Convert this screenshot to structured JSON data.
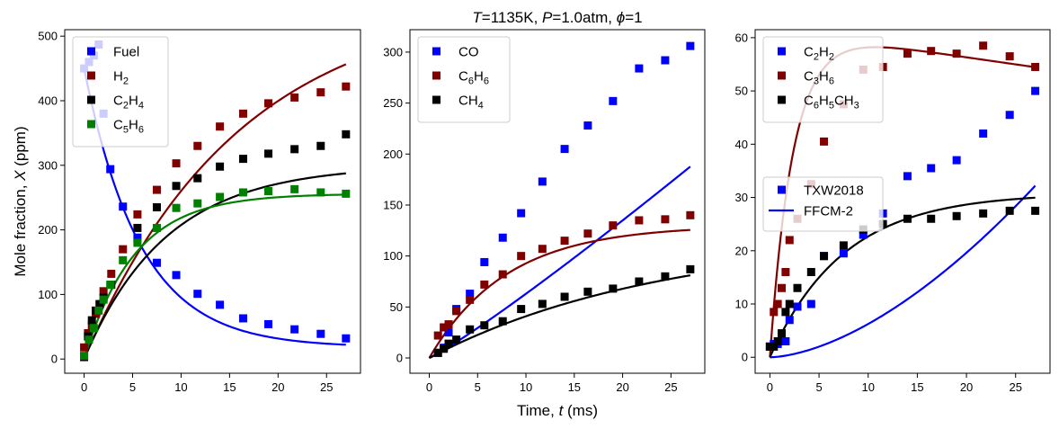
{
  "figure": {
    "title_parts": [
      {
        "text": "T",
        "italic": true
      },
      {
        "text": "=1135K, ",
        "italic": false
      },
      {
        "text": "P",
        "italic": true
      },
      {
        "text": "=1.0atm, ",
        "italic": false
      },
      {
        "text": "ϕ",
        "italic": true
      },
      {
        "text": "=1",
        "italic": false
      }
    ],
    "ylabel_parts": [
      {
        "text": "Mole fraction, ",
        "italic": false
      },
      {
        "text": "X",
        "italic": true
      },
      {
        "text": " (ppm)",
        "italic": false
      }
    ],
    "xlabel_parts": [
      {
        "text": "Time, ",
        "italic": false
      },
      {
        "text": "t",
        "italic": true
      },
      {
        "text": " (ms)",
        "italic": false
      }
    ],
    "style_legend": [
      {
        "label": "TXW2018",
        "kind": "marker",
        "color": "#0000ff"
      },
      {
        "label": "FFCM-2",
        "kind": "line",
        "color": "#0000ff"
      }
    ]
  },
  "chart_data": [
    {
      "type": "scatter+line",
      "xlim": [
        -2,
        28.5
      ],
      "ylim": [
        -22,
        510
      ],
      "xticks": [
        0,
        5,
        10,
        15,
        20,
        25
      ],
      "yticks": [
        0,
        100,
        200,
        300,
        400,
        500
      ],
      "legend": "top-left",
      "series": [
        {
          "name": "Fuel",
          "sub": "",
          "color": "#0000ff",
          "x": [
            0,
            0.5,
            1,
            1.5,
            2,
            2.7,
            4,
            5.5,
            7.5,
            9.5,
            11.7,
            14,
            16.4,
            19,
            21.7,
            24.4,
            27
          ],
          "y": [
            450,
            460,
            470,
            487,
            380,
            294,
            236,
            188,
            149,
            130,
            101,
            84,
            63,
            54,
            46,
            39,
            32
          ],
          "model": {
            "form": "decay",
            "x0": 0,
            "y0": 450,
            "yinf": 18,
            "tau": 5.8,
            "xmax": 27
          }
        },
        {
          "name": "H",
          "sub": "2",
          "color": "#800000",
          "x": [
            0,
            0.4,
            0.8,
            1.2,
            1.6,
            2.0,
            2.8,
            4.0,
            5.5,
            7.5,
            9.5,
            11.7,
            14,
            16.4,
            19,
            21.7,
            24.4,
            27
          ],
          "y": [
            18,
            40,
            52,
            70,
            85,
            105,
            132,
            170,
            224,
            262,
            303,
            330,
            360,
            380,
            396,
            405,
            413,
            422
          ],
          "model": {
            "form": "rise",
            "x0": 0,
            "y0": 0,
            "yinf": 560,
            "tau": 16,
            "xmax": 27
          }
        },
        {
          "name": "C",
          "sub": "2",
          "tail": "H",
          "sub2": "4",
          "color": "#000000",
          "x": [
            0,
            0.4,
            0.8,
            1.2,
            1.6,
            2.0,
            2.8,
            5.5,
            7.5,
            9.5,
            11.7,
            14,
            16.4,
            19,
            21.7,
            24.4,
            27
          ],
          "y": [
            3,
            35,
            60,
            75,
            85,
            95,
            115,
            203,
            235,
            268,
            280,
            298,
            310,
            318,
            325,
            330,
            348
          ],
          "model": {
            "form": "rise",
            "x0": 0,
            "y0": 0,
            "yinf": 300,
            "tau": 8.5,
            "xmax": 27
          }
        },
        {
          "name": "C",
          "sub": "5",
          "tail": "H",
          "sub2": "6",
          "color": "#008000",
          "x": [
            0,
            0.5,
            1,
            1.5,
            2,
            2.7,
            4,
            5.5,
            7.5,
            9.5,
            11.7,
            14,
            16.4,
            19,
            21.7,
            24.4,
            27
          ],
          "y": [
            5,
            30,
            48,
            75,
            92,
            115,
            153,
            180,
            203,
            234,
            241,
            251,
            258,
            260,
            263,
            258,
            256
          ],
          "model": {
            "form": "rise",
            "x0": 0,
            "y0": 0,
            "yinf": 256,
            "tau": 5.2,
            "xmax": 27
          }
        }
      ]
    },
    {
      "type": "scatter+line",
      "xlim": [
        -2,
        28.5
      ],
      "ylim": [
        -15,
        322
      ],
      "xticks": [
        0,
        5,
        10,
        15,
        20,
        25
      ],
      "yticks": [
        0,
        50,
        100,
        150,
        200,
        250,
        300
      ],
      "legend": "top-left",
      "series": [
        {
          "name": "CO",
          "sub": "",
          "color": "#0000ff",
          "x": [
            0.9,
            1.5,
            2.0,
            2.8,
            4.2,
            5.7,
            7.6,
            9.5,
            11.7,
            14,
            16.4,
            19,
            21.7,
            24.4,
            27
          ],
          "y": [
            5,
            10,
            25,
            48,
            63,
            94,
            118,
            142,
            173,
            205,
            228,
            252,
            284,
            292,
            306
          ],
          "model": {
            "form": "power",
            "x0": 0,
            "y0": 0,
            "a": 5.0,
            "p": 1.1,
            "xmax": 27
          }
        },
        {
          "name": "C",
          "sub": "6",
          "tail": "H",
          "sub2": "6",
          "color": "#800000",
          "x": [
            0.9,
            1.5,
            2.0,
            2.8,
            4.2,
            5.7,
            7.6,
            9.5,
            11.7,
            14,
            16.4,
            19,
            21.7,
            24.4,
            27
          ],
          "y": [
            22,
            30,
            33,
            46,
            57,
            72,
            82,
            100,
            107,
            115,
            122,
            130,
            135,
            136,
            140
          ],
          "model": {
            "form": "rise",
            "x0": 0,
            "y0": 0,
            "yinf": 130,
            "tau": 8,
            "xmax": 27
          }
        },
        {
          "name": "CH",
          "sub": "4",
          "color": "#000000",
          "x": [
            0.9,
            1.5,
            2.0,
            2.8,
            4.2,
            5.7,
            7.6,
            9.5,
            11.7,
            14,
            16.4,
            19,
            21.7,
            24.4,
            27
          ],
          "y": [
            5,
            9,
            14,
            18,
            28,
            32,
            36,
            48,
            53,
            60,
            65,
            68,
            75,
            80,
            87
          ],
          "model": {
            "form": "rise",
            "x0": 0,
            "y0": 0,
            "yinf": 120,
            "tau": 24,
            "xmax": 27
          }
        }
      ]
    },
    {
      "type": "scatter+line",
      "xlim": [
        -1.5,
        28.5
      ],
      "ylim": [
        -3,
        61.5
      ],
      "xticks": [
        0,
        5,
        10,
        15,
        20,
        25
      ],
      "yticks": [
        0,
        10,
        20,
        30,
        40,
        50,
        60
      ],
      "legend": "top-left",
      "series": [
        {
          "name": "C",
          "sub": "2",
          "tail": "H",
          "sub2": "2",
          "color": "#0000ff",
          "x": [
            0,
            0.4,
            0.8,
            1.2,
            1.6,
            2.0,
            2.8,
            4.2,
            5.5,
            7.5,
            9.5,
            11.5,
            14,
            16.4,
            19,
            21.7,
            24.4,
            27
          ],
          "y": [
            2,
            2.5,
            2.5,
            3,
            3,
            7,
            9.5,
            10,
            19,
            19.5,
            23,
            27,
            34,
            35.5,
            37,
            42,
            45.5,
            50
          ],
          "model": {
            "form": "power",
            "x0": 0,
            "y0": 0,
            "a": 0.14,
            "p": 1.65,
            "xmax": 27
          }
        },
        {
          "name": "C",
          "sub": "3",
          "tail": "H",
          "sub2": "6",
          "color": "#800000",
          "x": [
            0,
            0.4,
            0.8,
            1.2,
            1.6,
            2.0,
            2.8,
            4.2,
            5.5,
            7.5,
            9.5,
            11.5,
            14,
            16.4,
            19,
            21.7,
            24.4,
            27
          ],
          "y": [
            2,
            8.5,
            10,
            13,
            16,
            22,
            26,
            32.5,
            40.5,
            47.5,
            54,
            54.5,
            57,
            57.5,
            57,
            58.5,
            56.5,
            54.5
          ],
          "model": {
            "form": "risedecay",
            "x0": 0,
            "y0": 0,
            "A": 62,
            "tau": 2.4,
            "k": 0.0048,
            "xmax": 27
          }
        },
        {
          "name": "C",
          "sub": "6",
          "tail": "H",
          "sub2": "5",
          "tail2": "CH",
          "sub3": "3",
          "color": "#000000",
          "x": [
            0,
            0.4,
            0.8,
            1.2,
            1.6,
            2.0,
            2.8,
            4.2,
            5.5,
            7.5,
            9.5,
            11.5,
            14,
            16.4,
            19,
            21.7,
            24.4,
            27
          ],
          "y": [
            2,
            2,
            3,
            4.5,
            8.5,
            10,
            13,
            16,
            19,
            21,
            24,
            25,
            26,
            26,
            26.5,
            27,
            27.5,
            27.5
          ],
          "model": {
            "form": "rise",
            "x0": 0,
            "y0": 0,
            "yinf": 30.8,
            "tau": 7.5,
            "xmax": 27
          }
        }
      ]
    }
  ]
}
